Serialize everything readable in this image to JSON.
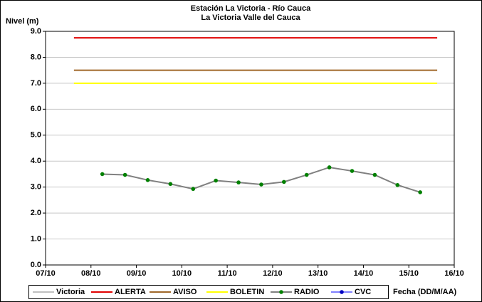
{
  "chart_data": {
    "type": "line",
    "title": "Estación La Victoria - Río Cauca",
    "subtitle": "La Victoria Valle del Cauca",
    "y_label": "Nivel (m)",
    "x_label": "Fecha (DD/M/AA)",
    "xlim": [
      7,
      16
    ],
    "xticks": [
      {
        "value": 7,
        "label": "07/10"
      },
      {
        "value": 8,
        "label": "08/10"
      },
      {
        "value": 9,
        "label": "09/10"
      },
      {
        "value": 10,
        "label": "10/10"
      },
      {
        "value": 11,
        "label": "11/10"
      },
      {
        "value": 12,
        "label": "12/10"
      },
      {
        "value": 13,
        "label": "13/10"
      },
      {
        "value": 14,
        "label": "14/10"
      },
      {
        "value": 15,
        "label": "15/10"
      },
      {
        "value": 16,
        "label": "16/10"
      }
    ],
    "ylim": [
      0,
      9
    ],
    "yticks": [
      {
        "value": 0,
        "label": "0.0"
      },
      {
        "value": 1,
        "label": "1.0"
      },
      {
        "value": 2,
        "label": "2.0"
      },
      {
        "value": 3,
        "label": "3.0"
      },
      {
        "value": 4,
        "label": "4.0"
      },
      {
        "value": 5,
        "label": "5.0"
      },
      {
        "value": 6,
        "label": "6.0"
      },
      {
        "value": 7,
        "label": "7.0"
      },
      {
        "value": 8,
        "label": "8.0"
      },
      {
        "value": 9,
        "label": "9.0"
      }
    ],
    "grid": true,
    "legend": "bottom",
    "series": [
      {
        "name": "Victoria",
        "color": "#c0c0c0",
        "x": [],
        "values": []
      },
      {
        "name": "ALERTA",
        "color": "#e00000",
        "x": [
          7.625,
          15.625
        ],
        "values": [
          8.75,
          8.75
        ]
      },
      {
        "name": "AVISO",
        "color": "#a0682a",
        "x": [
          7.625,
          15.625
        ],
        "values": [
          7.5,
          7.5
        ]
      },
      {
        "name": "BOLETIN",
        "color": "#ffff00",
        "x": [
          7.625,
          15.625
        ],
        "values": [
          7.0,
          7.0
        ]
      },
      {
        "name": "RADIO",
        "color": "#808080",
        "marker_color": "#008000",
        "x": [
          8.25,
          8.75,
          9.25,
          9.75,
          10.25,
          10.75,
          11.25,
          11.75,
          12.25,
          12.75,
          13.25,
          13.75,
          14.25,
          14.75,
          15.25
        ],
        "values": [
          3.5,
          3.47,
          3.27,
          3.12,
          2.93,
          3.25,
          3.18,
          3.1,
          3.2,
          3.47,
          3.76,
          3.62,
          3.47,
          3.08,
          2.8
        ]
      },
      {
        "name": "CVC",
        "color": "#8080ff",
        "marker_color": "#0000c0",
        "x": [],
        "values": []
      }
    ]
  }
}
